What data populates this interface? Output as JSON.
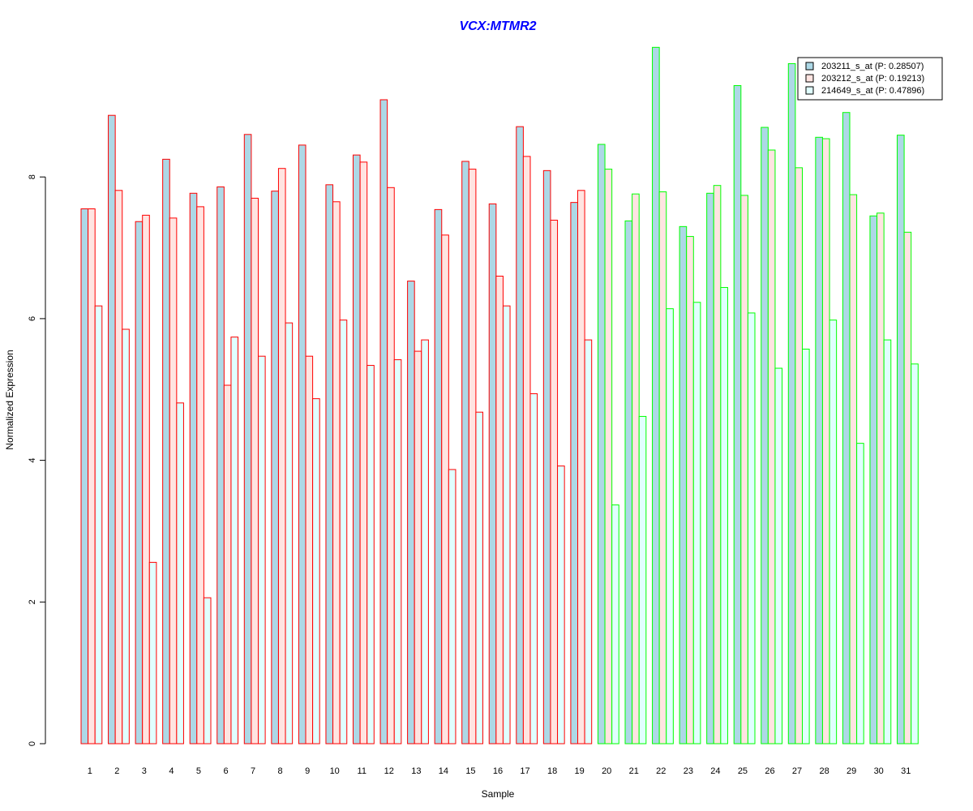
{
  "chart_data": {
    "type": "bar",
    "title": "VCX:MTMR2",
    "xlabel": "Sample",
    "ylabel": "Normalized Expression",
    "categories": [
      "1",
      "2",
      "3",
      "4",
      "5",
      "6",
      "7",
      "8",
      "9",
      "10",
      "11",
      "12",
      "13",
      "14",
      "15",
      "16",
      "17",
      "18",
      "19",
      "20",
      "21",
      "22",
      "23",
      "24",
      "25",
      "26",
      "27",
      "28",
      "29",
      "30",
      "31"
    ],
    "yticks": [
      0,
      2,
      4,
      6,
      8
    ],
    "ylim": [
      0,
      9.8
    ],
    "legend_position": "top-right",
    "series": [
      {
        "name": "203211_s_at (P: 0.28507)",
        "values": [
          7.55,
          8.87,
          7.37,
          8.25,
          7.77,
          7.86,
          8.6,
          7.8,
          8.45,
          7.89,
          8.31,
          9.09,
          6.53,
          7.54,
          8.22,
          7.62,
          8.71,
          8.09,
          7.64,
          8.46,
          7.38,
          9.83,
          7.3,
          7.77,
          9.29,
          8.7,
          9.6,
          8.56,
          8.91,
          7.45,
          8.59
        ]
      },
      {
        "name": "203212_s_at (P: 0.19213)",
        "values": [
          7.55,
          7.81,
          7.46,
          7.42,
          7.58,
          5.06,
          7.7,
          8.12,
          5.47,
          7.65,
          8.21,
          7.85,
          5.54,
          7.18,
          8.11,
          6.6,
          8.29,
          7.39,
          7.81,
          8.11,
          7.76,
          7.79,
          7.16,
          7.88,
          7.74,
          8.38,
          8.13,
          8.54,
          7.75,
          7.49,
          7.22
        ]
      },
      {
        "name": "214649_s_at (P: 0.47896)",
        "values": [
          6.18,
          5.85,
          2.56,
          4.81,
          2.06,
          5.74,
          5.47,
          5.94,
          4.87,
          5.98,
          5.34,
          5.42,
          5.7,
          3.87,
          4.68,
          6.18,
          4.94,
          3.92,
          5.7,
          3.37,
          4.62,
          6.14,
          6.23,
          6.44,
          6.08,
          5.3,
          5.57,
          5.98,
          4.24,
          5.7,
          5.36
        ]
      }
    ],
    "fills": [
      "#add8e6",
      "#ffe4e1",
      "#e0ffff"
    ],
    "group_colors": [
      "#ff0000",
      "#00ff00"
    ],
    "group_split_index": 19
  },
  "colors": {
    "title": "#0000ff",
    "axis": "#000000",
    "background": "#ffffff"
  }
}
